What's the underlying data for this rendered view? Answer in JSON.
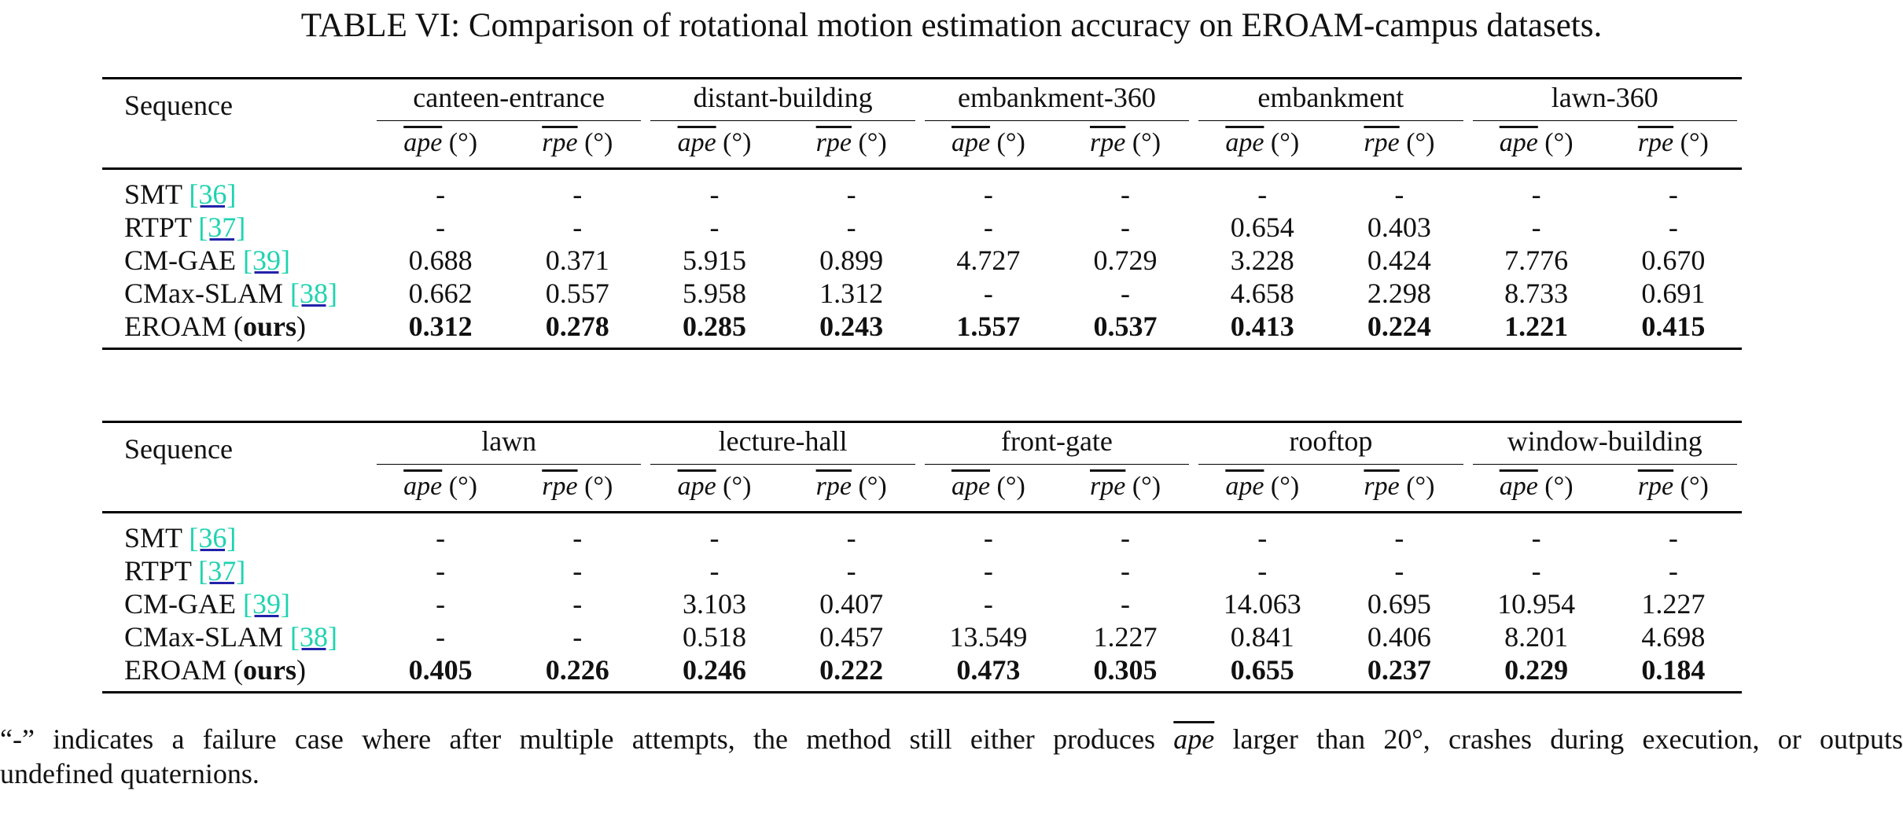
{
  "caption": "TABLE VI: Comparison of rotational motion estimation accuracy on EROAM-campus datasets.",
  "header_first": "Sequence",
  "metrics": {
    "ape": "ape",
    "rpe": "rpe",
    "unit": "(°)"
  },
  "tables": [
    {
      "groups": [
        "canteen-entrance",
        "distant-building",
        "embankment-360",
        "embankment",
        "lawn-360"
      ],
      "rows": [
        {
          "method": "SMT ",
          "ref": "[36]",
          "ours": "",
          "values": [
            "-",
            "-",
            "-",
            "-",
            "-",
            "-",
            "-",
            "-",
            "-",
            "-"
          ]
        },
        {
          "method": "RTPT ",
          "ref": "[37]",
          "ours": "",
          "values": [
            "-",
            "-",
            "-",
            "-",
            "-",
            "-",
            "0.654",
            "0.403",
            "-",
            "-"
          ]
        },
        {
          "method": "CM-GAE ",
          "ref": "[39]",
          "ours": "",
          "values": [
            "0.688",
            "0.371",
            "5.915",
            "0.899",
            "4.727",
            "0.729",
            "3.228",
            "0.424",
            "7.776",
            "0.670"
          ]
        },
        {
          "method": "CMax-SLAM ",
          "ref": "[38]",
          "ours": "",
          "values": [
            "0.662",
            "0.557",
            "5.958",
            "1.312",
            "-",
            "-",
            "4.658",
            "2.298",
            "8.733",
            "0.691"
          ]
        },
        {
          "method": "EROAM (",
          "ref": "",
          "ours": "ours",
          "close": ")",
          "values": [
            "0.312",
            "0.278",
            "0.285",
            "0.243",
            "1.557",
            "0.537",
            "0.413",
            "0.224",
            "1.221",
            "0.415"
          ]
        }
      ]
    },
    {
      "groups": [
        "lawn",
        "lecture-hall",
        "front-gate",
        "rooftop",
        "window-building"
      ],
      "rows": [
        {
          "method": "SMT ",
          "ref": "[36]",
          "ours": "",
          "values": [
            "-",
            "-",
            "-",
            "-",
            "-",
            "-",
            "-",
            "-",
            "-",
            "-"
          ]
        },
        {
          "method": "RTPT ",
          "ref": "[37]",
          "ours": "",
          "values": [
            "-",
            "-",
            "-",
            "-",
            "-",
            "-",
            "-",
            "-",
            "-",
            "-"
          ]
        },
        {
          "method": "CM-GAE ",
          "ref": "[39]",
          "ours": "",
          "values": [
            "-",
            "-",
            "3.103",
            "0.407",
            "-",
            "-",
            "14.063",
            "0.695",
            "10.954",
            "1.227"
          ]
        },
        {
          "method": "CMax-SLAM ",
          "ref": "[38]",
          "ours": "",
          "values": [
            "-",
            "-",
            "0.518",
            "0.457",
            "13.549",
            "1.227",
            "0.841",
            "0.406",
            "8.201",
            "4.698"
          ]
        },
        {
          "method": "EROAM (",
          "ref": "",
          "ours": "ours",
          "close": ")",
          "values": [
            "0.405",
            "0.226",
            "0.246",
            "0.222",
            "0.473",
            "0.305",
            "0.655",
            "0.237",
            "0.229",
            "0.184"
          ]
        }
      ]
    }
  ],
  "footnote": {
    "part1": "“-” indicates a failure case where after multiple attempts, the method still either produces ",
    "ape": "ape",
    "part2": " larger than 20°, crashes during execution, or outputs",
    "line2": "undefined quaternions."
  }
}
